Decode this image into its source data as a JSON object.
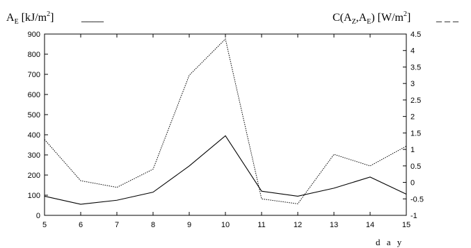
{
  "chart_data": {
    "type": "line",
    "x": [
      5,
      6,
      7,
      8,
      9,
      10,
      11,
      12,
      13,
      14,
      15
    ],
    "xlim": [
      5,
      15
    ],
    "xticks": [
      "5",
      "6",
      "7",
      "8",
      "9",
      "10",
      "11",
      "12",
      "13",
      "14",
      "15"
    ],
    "xlabel": "d a y",
    "y_left": {
      "label_main": "A",
      "label_sub": "E",
      "label_unit": " [kJ/m",
      "label_sup": "2",
      "label_close": "]",
      "legend_line": "____",
      "ylim": [
        0,
        900
      ],
      "ticks": [
        "0",
        "100",
        "200",
        "300",
        "400",
        "500",
        "600",
        "700",
        "800",
        "900"
      ]
    },
    "y_right": {
      "label_main": "C(A",
      "label_sub1": "Z",
      "label_mid": ",A",
      "label_sub2": "E",
      "label_unit": ") [W/m",
      "label_sup": "2",
      "label_close": "]",
      "legend_line": "_ _ _",
      "ylim": [
        -1,
        4.5
      ],
      "ticks": [
        "-1",
        "-0.5",
        "0",
        "0.5",
        "1",
        "1.5",
        "2",
        "2.5",
        "3",
        "3.5",
        "4",
        "4.5"
      ]
    },
    "series": [
      {
        "axis": "left",
        "style": "solid",
        "values": [
          95,
          55,
          75,
          115,
          245,
          395,
          120,
          95,
          135,
          190,
          105
        ]
      },
      {
        "axis": "right",
        "style": "dotted",
        "values": [
          1.3,
          0.05,
          -0.15,
          0.4,
          3.25,
          4.35,
          -0.5,
          -0.65,
          0.85,
          0.5,
          1.1
        ]
      }
    ],
    "grid": false
  }
}
